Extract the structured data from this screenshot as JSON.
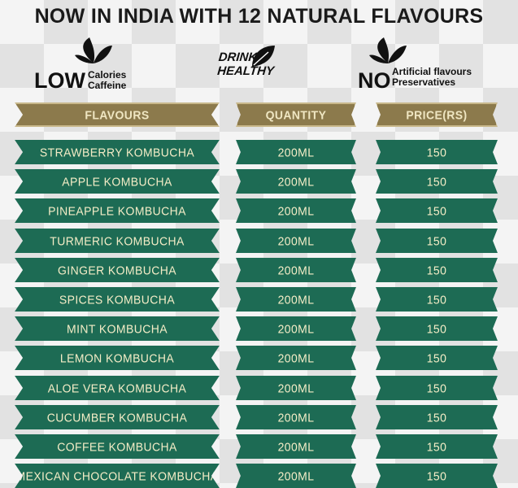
{
  "header": {
    "title": "NOW IN INDIA WITH 12 NATURAL FLAVOURS"
  },
  "badges": {
    "low": {
      "big": "LOW",
      "lines": [
        "Calories",
        "Caffeine"
      ]
    },
    "drink": {
      "lines": [
        "DRINK",
        "HEALTHY"
      ]
    },
    "no": {
      "big": "NO",
      "lines": [
        "Artificial flavours",
        "Preservatives"
      ]
    }
  },
  "table": {
    "columns": [
      "FLAVOURS",
      "QUANTITY",
      "PRICE(RS)"
    ],
    "rows": [
      [
        "STRAWBERRY KOMBUCHA",
        "200ML",
        "150"
      ],
      [
        "APPLE KOMBUCHA",
        "200ML",
        "150"
      ],
      [
        "PINEAPPLE KOMBUCHA",
        "200ML",
        "150"
      ],
      [
        "TURMERIC KOMBUCHA",
        "200ML",
        "150"
      ],
      [
        "GINGER KOMBUCHA",
        "200ML",
        "150"
      ],
      [
        "SPICES KOMBUCHA",
        "200ML",
        "150"
      ],
      [
        "MINT KOMBUCHA",
        "200ML",
        "150"
      ],
      [
        "LEMON KOMBUCHA",
        "200ML",
        "150"
      ],
      [
        "ALOE VERA KOMBUCHA",
        "200ML",
        "150"
      ],
      [
        "CUCUMBER KOMBUCHA",
        "200ML",
        "150"
      ],
      [
        "COFFEE KOMBUCHA",
        "200ML",
        "150"
      ],
      [
        "MEXICAN CHOCOLATE KOMBUCHA",
        "200ML",
        "150"
      ]
    ]
  }
}
